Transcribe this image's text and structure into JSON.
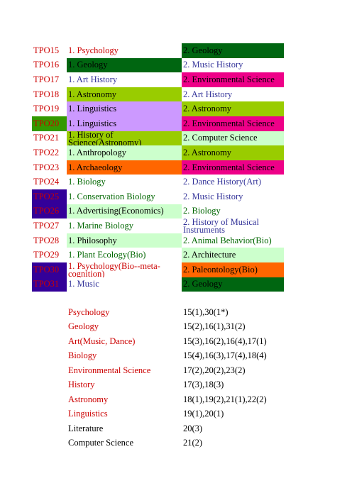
{
  "colors": {
    "red": "#cc0000",
    "blue": "#333399",
    "green": "#006600",
    "black": "#000000",
    "darkgreen_bg": "#006611",
    "lime_bg": "#99cc00",
    "pink_bg": "#ee0088",
    "lavender_bg": "#cc99ff",
    "mint_bg": "#ccffcc",
    "orange_bg": "#ff6600",
    "indigo_bg": "#330099",
    "green_bg": "#339900"
  },
  "tpo_table": [
    {
      "tpo": "TPO15",
      "tpo_bg": "",
      "tpo_fg": "red",
      "a": "1. Psychology",
      "a_bg": "",
      "a_fg": "red",
      "b": "2. Geology",
      "b_bg": "darkgreen_bg",
      "b_fg": "black"
    },
    {
      "tpo": "TPO16",
      "tpo_bg": "",
      "tpo_fg": "red",
      "a": "1. Geology",
      "a_bg": "darkgreen_bg",
      "a_fg": "black",
      "b": "2. Music History",
      "b_bg": "",
      "b_fg": "blue"
    },
    {
      "tpo": "TPO17",
      "tpo_bg": "",
      "tpo_fg": "red",
      "a": "1. Art History",
      "a_bg": "",
      "a_fg": "blue",
      "b": "2. Environmental Science",
      "b_bg": "pink_bg",
      "b_fg": "black"
    },
    {
      "tpo": "TPO18",
      "tpo_bg": "",
      "tpo_fg": "red",
      "a": "1. Astronomy",
      "a_bg": "lime_bg",
      "a_fg": "black",
      "b": "2. Art History",
      "b_bg": "",
      "b_fg": "blue"
    },
    {
      "tpo": "TPO19",
      "tpo_bg": "",
      "tpo_fg": "red",
      "a": "1. Linguistics",
      "a_bg": "lavender_bg",
      "a_fg": "black",
      "b": "2. Astronomy",
      "b_bg": "lime_bg",
      "b_fg": "black"
    },
    {
      "tpo": "TPO20",
      "tpo_bg": "green_bg",
      "tpo_fg": "red",
      "a": "1. Linguistics",
      "a_bg": "lavender_bg",
      "a_fg": "black",
      "b": "2. Environmental Science",
      "b_bg": "pink_bg",
      "b_fg": "black"
    },
    {
      "tpo": "TPO21",
      "tpo_bg": "",
      "tpo_fg": "red",
      "a": "1. History of Science(Astronomy)",
      "a_bg": "lime_bg",
      "a_fg": "black",
      "a_wrap": true,
      "b": "2. Computer Science",
      "b_bg": "mint_bg",
      "b_fg": "black"
    },
    {
      "tpo": "TPO22",
      "tpo_bg": "",
      "tpo_fg": "red",
      "a": "1. Anthropology",
      "a_bg": "mint_bg",
      "a_fg": "black",
      "b": "2. Astronomy",
      "b_bg": "lime_bg",
      "b_fg": "black"
    },
    {
      "tpo": "TPO23",
      "tpo_bg": "",
      "tpo_fg": "red",
      "a": "1. Archaeology",
      "a_bg": "orange_bg",
      "a_fg": "black",
      "b": "2. Environmental Science",
      "b_bg": "pink_bg",
      "b_fg": "black"
    },
    {
      "tpo": "TPO24",
      "tpo_bg": "",
      "tpo_fg": "red",
      "a": "1. Biology",
      "a_bg": "",
      "a_fg": "green",
      "b": "2. Dance History(Art)",
      "b_bg": "",
      "b_fg": "blue"
    },
    {
      "tpo": "TPO25",
      "tpo_bg": "indigo_bg",
      "tpo_fg": "red",
      "a": "1. Conservation Biology",
      "a_bg": "",
      "a_fg": "green",
      "b": "2. Music History",
      "b_bg": "",
      "b_fg": "blue"
    },
    {
      "tpo": "TPO26",
      "tpo_bg": "indigo_bg",
      "tpo_fg": "red",
      "a": "1. Advertising(Economics)",
      "a_bg": "mint_bg",
      "a_fg": "black",
      "b": "2. Biology",
      "b_bg": "",
      "b_fg": "green"
    },
    {
      "tpo": "TPO27",
      "tpo_bg": "",
      "tpo_fg": "red",
      "a": "1. Marine Biology",
      "a_bg": "",
      "a_fg": "green",
      "b": "2. History of Musical Instruments",
      "b_bg": "",
      "b_fg": "blue",
      "b_wrap": true
    },
    {
      "tpo": "TPO28",
      "tpo_bg": "",
      "tpo_fg": "red",
      "a": "1. Philosophy",
      "a_bg": "mint_bg",
      "a_fg": "black",
      "b": "2. Animal Behavior(Bio)",
      "b_bg": "",
      "b_fg": "green"
    },
    {
      "tpo": "TPO29",
      "tpo_bg": "",
      "tpo_fg": "red",
      "a": "1. Plant Ecology(Bio)",
      "a_bg": "",
      "a_fg": "green",
      "b": "2. Architecture",
      "b_bg": "mint_bg",
      "b_fg": "black"
    },
    {
      "tpo": "TPO30",
      "tpo_bg": "indigo_bg",
      "tpo_fg": "red",
      "a": "1. Psychology(Bio--meta-cognition)",
      "a_bg": "",
      "a_fg": "red",
      "a_wrap": true,
      "b": "2. Paleontology(Bio)",
      "b_bg": "orange_bg",
      "b_fg": "black"
    },
    {
      "tpo": "TPO31",
      "tpo_bg": "indigo_bg",
      "tpo_fg": "red",
      "a": "1. Music",
      "a_bg": "",
      "a_fg": "blue",
      "b": "2. Geology",
      "b_bg": "darkgreen_bg",
      "b_fg": "black"
    }
  ],
  "summary": [
    {
      "subject": "Psychology",
      "fg": "red",
      "refs": "15(1),30(1*)"
    },
    {
      "subject": "Geology",
      "fg": "red",
      "refs": "15(2),16(1),31(2)"
    },
    {
      "subject": "Art(Music, Dance)",
      "fg": "red",
      "refs": "15(3),16(2),16(4),17(1)"
    },
    {
      "subject": "Biology",
      "fg": "red",
      "refs": "15(4),16(3),17(4),18(4)"
    },
    {
      "subject": "Environmental Science",
      "fg": "red",
      "refs": "17(2),20(2),23(2)"
    },
    {
      "subject": "History",
      "fg": "red",
      "refs": "17(3),18(3)"
    },
    {
      "subject": "Astronomy",
      "fg": "red",
      "refs": "18(1),19(2),21(1),22(2)"
    },
    {
      "subject": "Linguistics",
      "fg": "red",
      "refs": "19(1),20(1)"
    },
    {
      "subject": "Literature",
      "fg": "black",
      "refs": "20(3)"
    },
    {
      "subject": "Computer Science",
      "fg": "black",
      "refs": "21(2)"
    }
  ]
}
